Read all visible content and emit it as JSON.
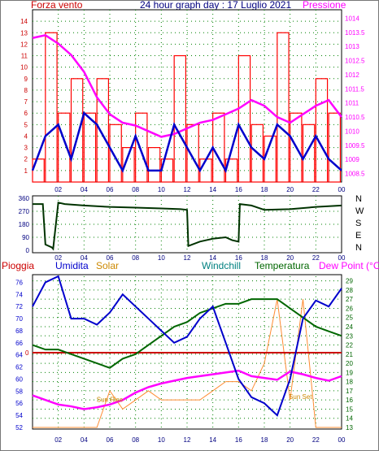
{
  "top_panel": {
    "title": "24 hour graph day : 17 Luglio 2021",
    "left_label": "Forza vento",
    "right_label": "Pressione",
    "left_ticks": [
      "14",
      "13",
      "12",
      "11",
      "10",
      "9",
      "8",
      "7",
      "6",
      "5",
      "4",
      "3",
      "2",
      "1"
    ],
    "right_ticks": [
      "1014",
      "1013.5",
      "1013",
      "1012.5",
      "1012",
      "1011.5",
      "1011",
      "1010.5",
      "1010",
      "1009.5",
      "1009",
      "1008.5"
    ],
    "x_ticks": [
      "02",
      "04",
      "06",
      "08",
      "10",
      "12",
      "14",
      "16",
      "18",
      "20",
      "22",
      "00"
    ],
    "colors": {
      "wind_gust": "#ff0000",
      "wind_avg": "#0000cc",
      "pressure": "#ff00ff",
      "grid": "#008000"
    }
  },
  "direction_panel": {
    "left_ticks": [
      "360",
      "270",
      "180",
      "90",
      "0"
    ],
    "right_labels": [
      "N",
      "W",
      "S",
      "E",
      "N"
    ],
    "x_ticks": [
      "02",
      "04",
      "06",
      "08",
      "10",
      "12",
      "14",
      "16",
      "18",
      "20",
      "22",
      "00"
    ],
    "line_color": "#003300"
  },
  "bottom_panel": {
    "labels": {
      "rain": "Pioggia",
      "humidity": "Umidita",
      "solar": "Solar",
      "windchill": "Windchill",
      "temperature": "Temperatura",
      "dewpoint": "Dew Point (°C)"
    },
    "left_ticks": [
      "76",
      "74",
      "72",
      "70",
      "68",
      "66",
      "64",
      "62",
      "60",
      "58",
      "56",
      "54",
      "52"
    ],
    "right_ticks": [
      "29",
      "28",
      "27",
      "26",
      "25",
      "24",
      "23",
      "22",
      "21",
      "20",
      "19",
      "18",
      "17",
      "16",
      "15",
      "14",
      "13"
    ],
    "rain_zero": "0",
    "sun_rise": "Sun Rise",
    "sun_set": "Sun Set",
    "x_ticks": [
      "02",
      "04",
      "06",
      "08",
      "10",
      "12",
      "14",
      "16",
      "18",
      "20",
      "22",
      "00"
    ],
    "colors": {
      "humidity": "#0000cc",
      "temperature": "#006600",
      "dewpoint": "#ff00ff",
      "solar": "#ff8000",
      "rain": "#cc0000",
      "windchill": "#008080"
    }
  },
  "chart_data": [
    {
      "type": "line",
      "title": "24 hour graph day : 17 Luglio 2021",
      "xlabel": "",
      "ylabel": "Forza vento",
      "y2label": "Pressione",
      "x": [
        0,
        1,
        2,
        3,
        4,
        5,
        6,
        7,
        8,
        9,
        10,
        11,
        12,
        13,
        14,
        15,
        16,
        17,
        18,
        19,
        20,
        21,
        22,
        23,
        24
      ],
      "ylim": [
        0,
        15
      ],
      "y2lim": [
        1008.2,
        1014.3
      ],
      "series": [
        {
          "role": "gust",
          "values": [
            2,
            13,
            6,
            9,
            6,
            9,
            5,
            3,
            6,
            3,
            2,
            11,
            5,
            2,
            6,
            2,
            11,
            5,
            4,
            13,
            6,
            5,
            9,
            6,
            5
          ],
          "values_color": "#ff0000"
        },
        {
          "role": "avg",
          "values": [
            1,
            4,
            5,
            2,
            6,
            5,
            3,
            1,
            4,
            1,
            1,
            5,
            3,
            1,
            3,
            1,
            5,
            3,
            2,
            5,
            4,
            2,
            4,
            2,
            1
          ]
        },
        {
          "values": [
            1013.3,
            1013.4,
            1013.1,
            1012.7,
            1012.1,
            1011.2,
            1010.6,
            1010.3,
            1010.2,
            1010.0,
            1009.8,
            1009.9,
            1010.1,
            1010.3,
            1010.4,
            1010.6,
            1010.8,
            1011.1,
            1010.9,
            1010.5,
            1010.3,
            1010.6,
            1010.9,
            1011.1,
            1010.5
          ]
        }
      ]
    },
    {
      "type": "line",
      "ylabel": "",
      "ylim": [
        0,
        360
      ],
      "x": [
        0,
        0.8,
        1.0,
        1.5,
        1.6,
        2.0,
        2.5,
        4,
        6,
        8,
        10,
        11.5,
        12,
        12.1,
        13,
        14,
        15,
        15.5,
        16,
        16.1,
        17,
        18,
        20,
        22,
        24
      ],
      "series": [
        {
          "values": [
            320,
            320,
            40,
            20,
            10,
            330,
            320,
            310,
            300,
            295,
            290,
            285,
            280,
            30,
            60,
            80,
            90,
            70,
            60,
            320,
            310,
            280,
            285,
            300,
            310
          ]
        }
      ]
    },
    {
      "type": "line",
      "ylabel": "Umidita",
      "y2label": "Temperatura",
      "x": [
        0,
        1,
        2,
        3,
        4,
        5,
        6,
        7,
        8,
        9,
        10,
        11,
        12,
        13,
        14,
        15,
        16,
        17,
        18,
        19,
        20,
        21,
        22,
        23,
        24
      ],
      "ylim": [
        52,
        77
      ],
      "y2lim": [
        13,
        29.5
      ],
      "series": [
        {
          "name": "Umidita",
          "values": [
            72,
            76,
            77,
            70,
            70,
            69,
            71,
            74,
            72,
            70,
            68,
            66,
            67,
            70,
            72,
            66,
            60,
            57,
            56,
            54,
            60,
            70,
            73,
            72,
            75
          ]
        },
        {
          "name": "Temperatura",
          "values": [
            22,
            21.5,
            21.5,
            21,
            20.5,
            20,
            19.5,
            20.5,
            21,
            22,
            23,
            24,
            24.5,
            25.5,
            26,
            26.5,
            26.5,
            27,
            27,
            27,
            26,
            25,
            24,
            23.5,
            23
          ]
        },
        {
          "name": "Dew Point (°C)",
          "values": [
            16.5,
            16,
            15.5,
            15.3,
            15,
            15.2,
            15.5,
            16,
            16.8,
            17.4,
            17.8,
            18.1,
            18.4,
            18.6,
            18.8,
            19,
            19.2,
            18.6,
            18.4,
            18.2,
            19.1,
            18.8,
            18.4,
            18.1,
            18.6
          ]
        },
        {
          "name": "Solar",
          "values": [
            13,
            13,
            13,
            13,
            13,
            13,
            17,
            15,
            16,
            17,
            16,
            16,
            16,
            16,
            17,
            18,
            18,
            17,
            20,
            27,
            16,
            27,
            13,
            13,
            13
          ]
        },
        {
          "name": "Pioggia",
          "values": [
            0,
            0,
            0,
            0,
            0,
            0,
            0,
            0,
            0,
            0,
            0,
            0,
            0,
            0,
            0,
            0,
            0,
            0,
            0,
            0,
            0,
            0,
            0,
            0,
            0
          ]
        }
      ]
    }
  ]
}
